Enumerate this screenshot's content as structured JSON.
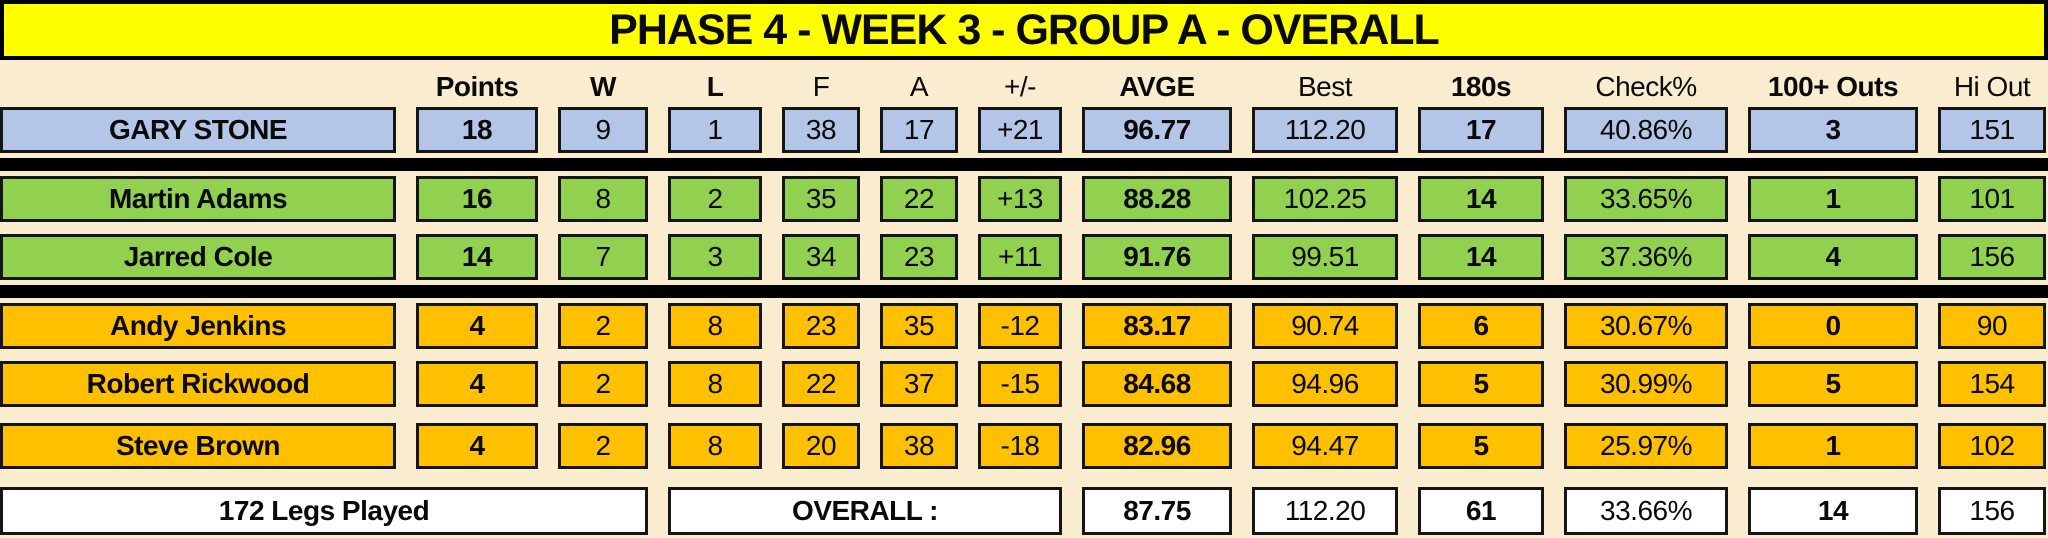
{
  "title": "PHASE 4 - WEEK 3 - GROUP A - OVERALL",
  "columns": {
    "name": "",
    "points": "Points",
    "w": "W",
    "l": "L",
    "f": "F",
    "a": "A",
    "pm": "+/-",
    "avge": "AVGE",
    "best": "Best",
    "s180": "180s",
    "check": "Check%",
    "outs": "100+ Outs",
    "hiout": "Hi Out"
  },
  "players": [
    {
      "name": "GARY STONE",
      "points": "18",
      "w": "9",
      "l": "1",
      "f": "38",
      "a": "17",
      "pm": "+21",
      "avge": "96.77",
      "best": "112.20",
      "s180": "17",
      "check": "40.86%",
      "outs": "3",
      "hiout": "151",
      "row_color": "blue"
    },
    {
      "name": "Martin Adams",
      "points": "16",
      "w": "8",
      "l": "2",
      "f": "35",
      "a": "22",
      "pm": "+13",
      "avge": "88.28",
      "best": "102.25",
      "s180": "14",
      "check": "33.65%",
      "outs": "1",
      "hiout": "101",
      "row_color": "green"
    },
    {
      "name": "Jarred Cole",
      "points": "14",
      "w": "7",
      "l": "3",
      "f": "34",
      "a": "23",
      "pm": "+11",
      "avge": "91.76",
      "best": "99.51",
      "s180": "14",
      "check": "37.36%",
      "outs": "4",
      "hiout": "156",
      "row_color": "green"
    },
    {
      "name": "Andy Jenkins",
      "points": "4",
      "w": "2",
      "l": "8",
      "f": "23",
      "a": "35",
      "pm": "-12",
      "avge": "83.17",
      "best": "90.74",
      "s180": "6",
      "check": "30.67%",
      "outs": "0",
      "hiout": "90",
      "row_color": "orange"
    },
    {
      "name": "Robert Rickwood",
      "points": "4",
      "w": "2",
      "l": "8",
      "f": "22",
      "a": "37",
      "pm": "-15",
      "avge": "84.68",
      "best": "94.96",
      "s180": "5",
      "check": "30.99%",
      "outs": "5",
      "hiout": "154",
      "row_color": "orange"
    },
    {
      "name": "Steve Brown",
      "points": "4",
      "w": "2",
      "l": "8",
      "f": "20",
      "a": "38",
      "pm": "-18",
      "avge": "82.96",
      "best": "94.47",
      "s180": "5",
      "check": "25.97%",
      "outs": "1",
      "hiout": "102",
      "row_color": "orange"
    }
  ],
  "footer": {
    "legs": "172 Legs Played",
    "overall_label": "OVERALL :",
    "avge": "87.75",
    "best": "112.20",
    "s180": "61",
    "check": "33.66%",
    "outs": "14",
    "hiout": "156"
  },
  "colors": {
    "bg": "#FAEDCF",
    "yellow": "#FFFF00",
    "blue": "#B4C6E7",
    "green": "#92D050",
    "orange": "#FFC000"
  }
}
